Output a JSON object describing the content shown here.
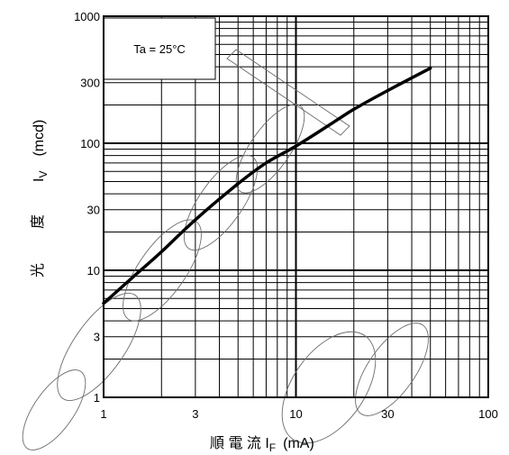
{
  "chart_data": {
    "type": "line",
    "x_scale": "log",
    "y_scale": "log",
    "xlim": [
      1,
      100
    ],
    "ylim": [
      1,
      1000
    ],
    "grid": true,
    "x_ticks": [
      "1",
      "3",
      "10",
      "30",
      "100"
    ],
    "y_ticks": [
      "1",
      "3",
      "10",
      "30",
      "100",
      "300",
      "1000"
    ],
    "xlabel": "順 電 流 I",
    "xlabel_sub": "F",
    "xlabel_unit": "(mA)",
    "ylabel_chars": [
      "光",
      "度"
    ],
    "ylabel_symbol": "I",
    "ylabel_sub": "V",
    "ylabel_unit": "(mcd)",
    "annotation": "Ta = 25°C",
    "series": [
      {
        "x": [
          1,
          1.5,
          2,
          3,
          5,
          7,
          10,
          15,
          20,
          30,
          50
        ],
        "y": [
          5.5,
          9.5,
          14,
          25,
          48,
          70,
          95,
          140,
          185,
          260,
          390
        ]
      }
    ],
    "colors": {
      "line": "#000000",
      "grid": "#000000",
      "watermark": "#6b6b6b"
    }
  }
}
